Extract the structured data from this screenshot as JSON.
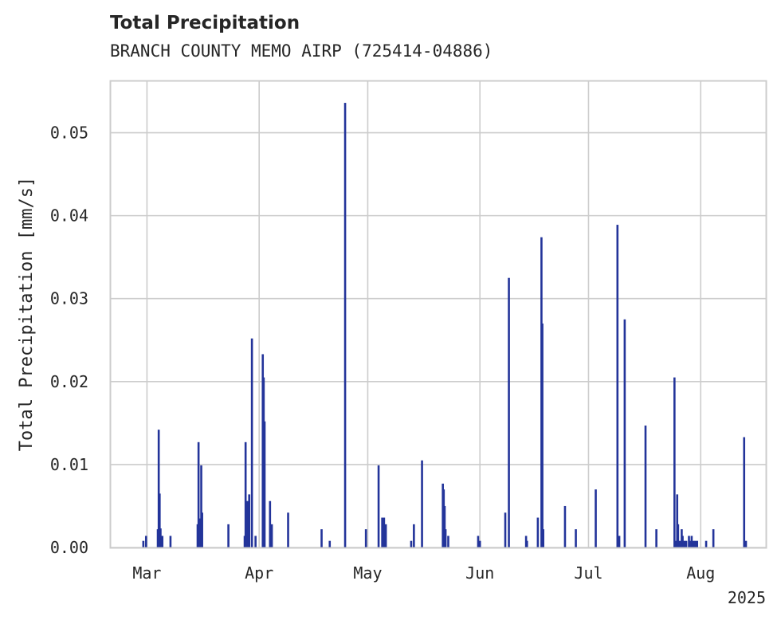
{
  "chart_data": {
    "type": "bar",
    "title": "Total Precipitation",
    "subtitle": "BRANCH COUNTY MEMO AIRP (725414-04886)",
    "ylabel": "Total Precipitation [mm/s]",
    "xlabel": "",
    "year_label": "2025",
    "ylim": [
      0,
      0.0562
    ],
    "xlim": [
      "2025-02-19",
      "2025-08-19"
    ],
    "grid": true,
    "bar_color": "#23349a",
    "y_ticks": [
      "0.00",
      "0.01",
      "0.02",
      "0.03",
      "0.04",
      "0.05"
    ],
    "x_ticks": [
      {
        "date": "2025-03-01",
        "label": "Mar"
      },
      {
        "date": "2025-04-01",
        "label": "Apr"
      },
      {
        "date": "2025-05-01",
        "label": "May"
      },
      {
        "date": "2025-06-01",
        "label": "Jun"
      },
      {
        "date": "2025-07-01",
        "label": "Jul"
      },
      {
        "date": "2025-08-01",
        "label": "Aug"
      }
    ],
    "points": [
      {
        "date": "2025-02-28",
        "value": 0.0008
      },
      {
        "date": "2025-02-28T18:00",
        "value": 0.0014
      },
      {
        "date": "2025-03-04",
        "value": 0.0022
      },
      {
        "date": "2025-03-04T06:00",
        "value": 0.0142
      },
      {
        "date": "2025-03-04T12:00",
        "value": 0.0065
      },
      {
        "date": "2025-03-04T18:00",
        "value": 0.0023
      },
      {
        "date": "2025-03-05T06:00",
        "value": 0.0014
      },
      {
        "date": "2025-03-07T12:00",
        "value": 0.0014
      },
      {
        "date": "2025-03-15",
        "value": 0.0028
      },
      {
        "date": "2025-03-15T06:00",
        "value": 0.0127
      },
      {
        "date": "2025-03-15T18:00",
        "value": 0.0035
      },
      {
        "date": "2025-03-16",
        "value": 0.0099
      },
      {
        "date": "2025-03-16T06:00",
        "value": 0.0042
      },
      {
        "date": "2025-03-23T12:00",
        "value": 0.0028
      },
      {
        "date": "2025-03-28",
        "value": 0.0014
      },
      {
        "date": "2025-03-28T06:00",
        "value": 0.0127
      },
      {
        "date": "2025-03-28T18:00",
        "value": 0.0056
      },
      {
        "date": "2025-03-29T06:00",
        "value": 0.0064
      },
      {
        "date": "2025-03-30",
        "value": 0.0252
      },
      {
        "date": "2025-03-31",
        "value": 0.0014
      },
      {
        "date": "2025-04-02",
        "value": 0.0233
      },
      {
        "date": "2025-04-02T06:00",
        "value": 0.0205
      },
      {
        "date": "2025-04-02T12:00",
        "value": 0.0152
      },
      {
        "date": "2025-04-04",
        "value": 0.0056
      },
      {
        "date": "2025-04-04T12:00",
        "value": 0.0028
      },
      {
        "date": "2025-04-09",
        "value": 0.0042
      },
      {
        "date": "2025-04-18T06:00",
        "value": 0.0022
      },
      {
        "date": "2025-04-20T12:00",
        "value": 0.0008
      },
      {
        "date": "2025-04-24T18:00",
        "value": 0.0536
      },
      {
        "date": "2025-04-30T12:00",
        "value": 0.0022
      },
      {
        "date": "2025-05-04",
        "value": 0.0099
      },
      {
        "date": "2025-05-05",
        "value": 0.0036
      },
      {
        "date": "2025-05-05T12:00",
        "value": 0.0036
      },
      {
        "date": "2025-05-06",
        "value": 0.0028
      },
      {
        "date": "2025-05-13",
        "value": 0.0008
      },
      {
        "date": "2025-05-13T18:00",
        "value": 0.0028
      },
      {
        "date": "2025-05-16",
        "value": 0.0105
      },
      {
        "date": "2025-05-21T18:00",
        "value": 0.0077
      },
      {
        "date": "2025-05-22",
        "value": 0.007
      },
      {
        "date": "2025-05-22T06:00",
        "value": 0.005
      },
      {
        "date": "2025-05-22T12:00",
        "value": 0.0022
      },
      {
        "date": "2025-05-23T06:00",
        "value": 0.0014
      },
      {
        "date": "2025-05-31T12:00",
        "value": 0.0014
      },
      {
        "date": "2025-06-01",
        "value": 0.0008
      },
      {
        "date": "2025-06-08",
        "value": 0.0042
      },
      {
        "date": "2025-06-09",
        "value": 0.0325
      },
      {
        "date": "2025-06-13T18:00",
        "value": 0.0014
      },
      {
        "date": "2025-06-14",
        "value": 0.0008
      },
      {
        "date": "2025-06-17",
        "value": 0.0036
      },
      {
        "date": "2025-06-18",
        "value": 0.0374
      },
      {
        "date": "2025-06-18T06:00",
        "value": 0.027
      },
      {
        "date": "2025-06-18T12:00",
        "value": 0.0022
      },
      {
        "date": "2025-06-24T12:00",
        "value": 0.005
      },
      {
        "date": "2025-06-27T12:00",
        "value": 0.0022
      },
      {
        "date": "2025-07-03",
        "value": 0.007
      },
      {
        "date": "2025-07-09",
        "value": 0.0389
      },
      {
        "date": "2025-07-09T12:00",
        "value": 0.0014
      },
      {
        "date": "2025-07-11",
        "value": 0.0275
      },
      {
        "date": "2025-07-16T18:00",
        "value": 0.0147
      },
      {
        "date": "2025-07-19T18:00",
        "value": 0.0022
      },
      {
        "date": "2025-07-24T18:00",
        "value": 0.0205
      },
      {
        "date": "2025-07-25",
        "value": 0.0008
      },
      {
        "date": "2025-07-25T12:00",
        "value": 0.0064
      },
      {
        "date": "2025-07-25T18:00",
        "value": 0.0028
      },
      {
        "date": "2025-07-26T06:00",
        "value": 0.0008
      },
      {
        "date": "2025-07-26T18:00",
        "value": 0.0022
      },
      {
        "date": "2025-07-27",
        "value": 0.0014
      },
      {
        "date": "2025-07-27T12:00",
        "value": 0.0008
      },
      {
        "date": "2025-07-28",
        "value": 0.0008
      },
      {
        "date": "2025-07-28T18:00",
        "value": 0.0014
      },
      {
        "date": "2025-07-29",
        "value": 0.0008
      },
      {
        "date": "2025-07-29T12:00",
        "value": 0.0014
      },
      {
        "date": "2025-07-30",
        "value": 0.0008
      },
      {
        "date": "2025-07-30T12:00",
        "value": 0.0008
      },
      {
        "date": "2025-07-31",
        "value": 0.0008
      },
      {
        "date": "2025-08-02T12:00",
        "value": 0.0008
      },
      {
        "date": "2025-08-04T12:00",
        "value": 0.0022
      },
      {
        "date": "2025-08-13",
        "value": 0.0133
      },
      {
        "date": "2025-08-13T12:00",
        "value": 0.0008
      }
    ]
  }
}
